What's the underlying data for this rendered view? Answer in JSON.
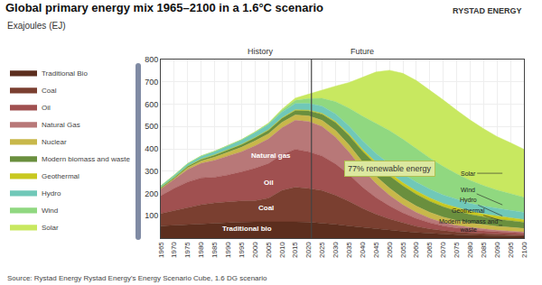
{
  "chart_data": {
    "type": "area",
    "stacked": true,
    "title": "Global primary energy mix 1965–2100 in a 1.6°C scenario",
    "subtitle": "Exajoules (EJ)",
    "source": "Source: Rystad Energy Rystad Energy's Energy Scenario Cube, 1.6 DG scenario",
    "x": [
      1965,
      1970,
      1975,
      1980,
      1985,
      1990,
      1995,
      2000,
      2005,
      2010,
      2015,
      2020,
      2025,
      2030,
      2035,
      2040,
      2045,
      2050,
      2055,
      2060,
      2065,
      2070,
      2075,
      2080,
      2085,
      2090,
      2095,
      2100
    ],
    "xlim": [
      1965,
      2100
    ],
    "xticks": [
      1965,
      1970,
      1975,
      1980,
      1985,
      1990,
      1995,
      2000,
      2005,
      2010,
      2015,
      2020,
      2025,
      2030,
      2035,
      2040,
      2045,
      2050,
      2055,
      2060,
      2065,
      2070,
      2075,
      2080,
      2085,
      2090,
      2095,
      2100
    ],
    "ylim": [
      0,
      800
    ],
    "yticks": [
      100,
      200,
      300,
      400,
      500,
      600,
      700,
      800
    ],
    "grid": true,
    "legend": "left",
    "series": [
      {
        "name": "Traditional Bio",
        "color": "#5c2e1e",
        "values": [
          55,
          58,
          62,
          65,
          68,
          70,
          72,
          73,
          74,
          74,
          73,
          72,
          68,
          62,
          55,
          48,
          42,
          36,
          30,
          25,
          21,
          18,
          15,
          13,
          11,
          10,
          9,
          8
        ]
      },
      {
        "name": "Coal",
        "color": "#7a3f30",
        "values": [
          55,
          65,
          75,
          85,
          90,
          93,
          95,
          95,
          105,
          140,
          155,
          150,
          145,
          130,
          110,
          85,
          65,
          50,
          38,
          28,
          20,
          15,
          12,
          10,
          8,
          7,
          6,
          5
        ]
      },
      {
        "name": "Oil",
        "color": "#a05050",
        "values": [
          80,
          100,
          115,
          120,
          115,
          120,
          130,
          145,
          155,
          160,
          170,
          165,
          155,
          140,
          120,
          95,
          75,
          58,
          45,
          35,
          28,
          22,
          18,
          15,
          13,
          11,
          10,
          9
        ]
      },
      {
        "name": "Natural Gas",
        "color": "#b87878",
        "values": [
          30,
          40,
          55,
          65,
          75,
          85,
          90,
          100,
          110,
          120,
          130,
          135,
          132,
          120,
          100,
          80,
          62,
          48,
          36,
          27,
          20,
          15,
          12,
          10,
          8,
          7,
          6,
          5
        ]
      },
      {
        "name": "Nuclear",
        "color": "#c8b84a",
        "values": [
          1,
          3,
          8,
          10,
          15,
          18,
          20,
          22,
          23,
          24,
          24,
          25,
          27,
          30,
          32,
          33,
          33,
          32,
          30,
          28,
          26,
          24,
          22,
          20,
          19,
          18,
          17,
          16
        ]
      },
      {
        "name": "Modern biomass and waste",
        "color": "#6a8f3e",
        "values": [
          5,
          6,
          7,
          8,
          9,
          10,
          12,
          14,
          16,
          18,
          20,
          23,
          28,
          35,
          42,
          48,
          52,
          55,
          55,
          53,
          50,
          46,
          42,
          38,
          35,
          32,
          30,
          28
        ]
      },
      {
        "name": "Geothermal",
        "color": "#c8c820",
        "values": [
          0,
          0,
          0,
          1,
          1,
          1,
          1,
          2,
          2,
          2,
          3,
          3,
          4,
          5,
          7,
          9,
          11,
          13,
          14,
          15,
          15,
          15,
          15,
          14,
          14,
          13,
          13,
          12
        ]
      },
      {
        "name": "Hydro",
        "color": "#70c8b8",
        "values": [
          8,
          10,
          12,
          14,
          16,
          18,
          20,
          22,
          24,
          26,
          28,
          30,
          32,
          34,
          36,
          38,
          39,
          40,
          40,
          40,
          39,
          38,
          37,
          36,
          35,
          34,
          33,
          32
        ]
      },
      {
        "name": "Wind",
        "color": "#90d880",
        "values": [
          0,
          0,
          0,
          0,
          0,
          0,
          1,
          2,
          4,
          8,
          14,
          22,
          35,
          55,
          80,
          110,
          135,
          150,
          155,
          150,
          140,
          128,
          115,
          103,
          92,
          83,
          75,
          68
        ]
      },
      {
        "name": "Solar",
        "color": "#c8e860",
        "values": [
          0,
          0,
          0,
          0,
          0,
          0,
          0,
          1,
          2,
          5,
          10,
          20,
          38,
          70,
          115,
          175,
          230,
          270,
          295,
          305,
          305,
          298,
          285,
          270,
          255,
          240,
          228,
          215
        ]
      }
    ],
    "annotations": [
      {
        "x": 2021,
        "line_style": "solid"
      },
      {
        "text": "History",
        "x": 2002
      },
      {
        "text": "Future",
        "x": 2040
      },
      {
        "text": "Traditional bio",
        "x": 1997,
        "y": 42,
        "color": "#ffffff"
      },
      {
        "text": "Coal",
        "x": 2004,
        "y": 135,
        "color": "#ffffff"
      },
      {
        "text": "Oil",
        "x": 2005,
        "y": 250,
        "color": "#ffffff"
      },
      {
        "text": "Natural gas",
        "x": 2006,
        "y": 370,
        "color": "#ffffff"
      },
      {
        "text": "Modern biomass and\nwaste",
        "x": 2092,
        "series": "Modern biomass and waste"
      },
      {
        "text": "Geothermal",
        "x": 2092,
        "series": "Geothermal"
      },
      {
        "text": "Hydro",
        "x": 2092,
        "series": "Hydro"
      },
      {
        "text": "Wind",
        "x": 2092,
        "series": "Wind"
      },
      {
        "text": "Solar",
        "x": 2092,
        "series": "Solar"
      },
      {
        "text": "77% renewable energy",
        "x": 2050,
        "y": 310
      },
      {
        "text": "RYSTAD ENERGY"
      }
    ]
  }
}
